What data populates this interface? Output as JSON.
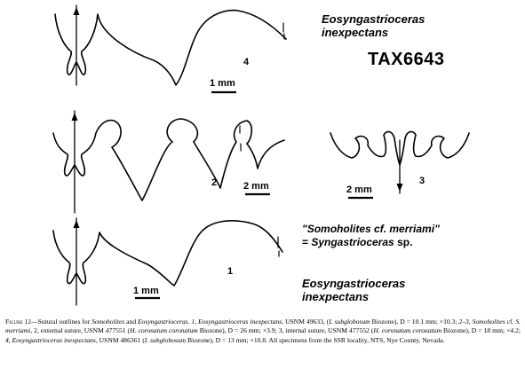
{
  "labels": {
    "top_species_line1": "Eosyngastrioceras",
    "top_species_line2": "inexpectans",
    "tax_id": "TAX6643",
    "num_4": "4",
    "num_2": "2",
    "num_3": "3",
    "num_1": "1",
    "scale_4": "1 mm",
    "scale_2": "2 mm",
    "scale_3": "2 mm",
    "scale_1": "1 mm",
    "quoted_line1": "\"Somoholites cf. merriami\"",
    "quoted_line2_prefix": "= ",
    "quoted_line2_name": "Syngastrioceras",
    "quoted_line2_suffix": " sp.",
    "bottom_species_line1": "Eosyngastrioceras",
    "bottom_species_line2": "inexpectans"
  },
  "caption": {
    "fig_label": "Figure 12",
    "p1": "—Sutural outlines for ",
    "t1": "Somoholites",
    "p2": " and ",
    "t2": "Eosyngastrioceras",
    "p3": ". ",
    "t3": "1, Eosyngastrioceras inexpectans",
    "p4": ", USNM 49633, (",
    "t4": "I. subglobosum",
    "p5": " Biozone), D = 10.1 mm; ×10.3; ",
    "t5": "2–3, Somoholites",
    "p6": " cf. ",
    "t6": "S. merriami",
    "p7": ", 2, external suture, USNM 477551 (",
    "t7": "H. coronatum coronatum",
    "p8": " Biozone), D = 26 mm; ×3.9; 3, internal suture, USNM 477552 (",
    "t8": "H. coronatum coronatum",
    "p9": " Biozone), D = 18 mm; ×4.2; ",
    "t9": "4, Eosyngastrioceras inexpectans",
    "p10": ", USNM 486361 (",
    "t10": "I. subglobosum",
    "p11": " Biozone), D = 13 mm; ×10.8. All specimens from the SSR locality, NTS, Nye County, Nevada."
  }
}
